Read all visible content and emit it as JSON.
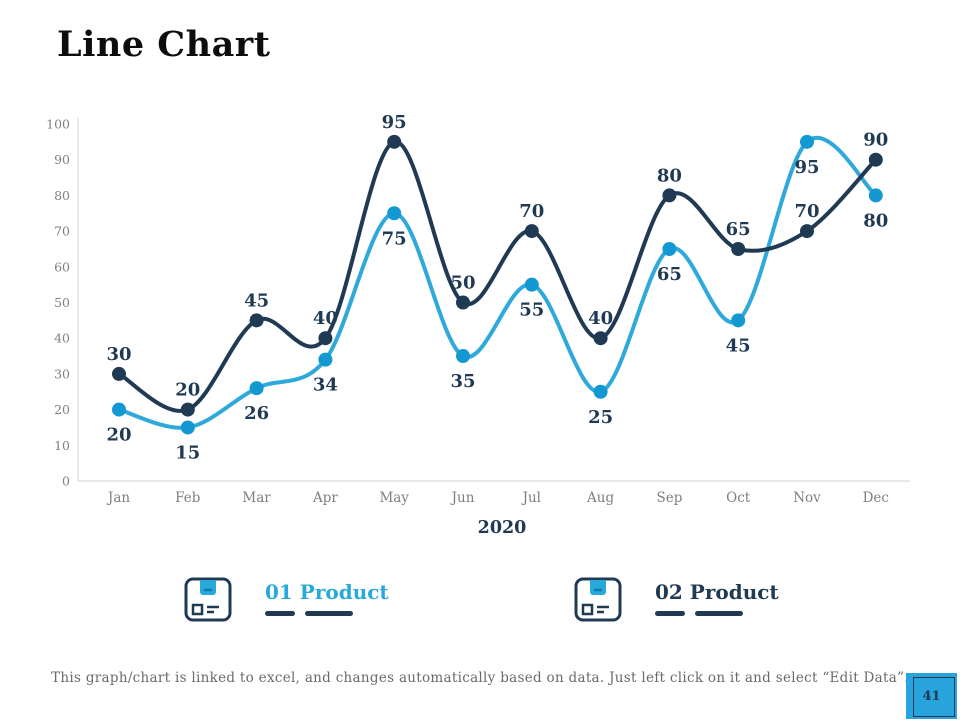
{
  "slide": {
    "title": "Line Chart",
    "footer": "This graph/chart is linked to excel, and changes automatically based on data. Just left click on it and select “Edit Data”.",
    "page_number": "41"
  },
  "chart_data": {
    "type": "line",
    "title": "Line Chart",
    "xlabel": "2020",
    "ylabel": "",
    "categories": [
      "Jan",
      "Feb",
      "Mar",
      "Apr",
      "May",
      "Jun",
      "Jul",
      "Aug",
      "Sep",
      "Oct",
      "Nov",
      "Dec"
    ],
    "y_ticks": [
      0,
      10,
      20,
      30,
      40,
      50,
      60,
      70,
      80,
      90,
      100
    ],
    "ylim": [
      0,
      100
    ],
    "grid": false,
    "legend_position": "bottom",
    "series": [
      {
        "name": "01 Product",
        "color": "#2fa9dc",
        "marker_color": "#1498d2",
        "label_position": "below",
        "values": [
          20,
          15,
          26,
          34,
          75,
          35,
          55,
          25,
          65,
          45,
          95,
          80
        ]
      },
      {
        "name": "02 Product",
        "color": "#203a54",
        "marker_color": "#203a54",
        "label_position": "above",
        "values": [
          30,
          20,
          45,
          40,
          95,
          50,
          70,
          40,
          80,
          65,
          70,
          90
        ]
      }
    ],
    "label_color": "#203a54",
    "axis_color": "#d9d9d9",
    "tick_color": "#7f7f7f"
  },
  "legend": {
    "items": [
      {
        "label": "01 Product",
        "color": "#29a8dc"
      },
      {
        "label": "02 Product",
        "color": "#203a54"
      }
    ]
  }
}
